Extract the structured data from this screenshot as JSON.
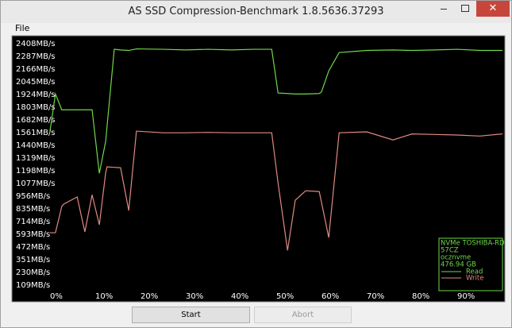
{
  "window": {
    "title": "AS SSD Compression-Benchmark 1.8.5636.37293",
    "menu": [
      "File"
    ],
    "buttons": [
      "Start",
      "Abort"
    ]
  },
  "chart_data": {
    "type": "line",
    "x": [
      0,
      1.2,
      2.6,
      3,
      6,
      7.7,
      9.3,
      10.9,
      12.3,
      12.6,
      14.2,
      15.6,
      17.4,
      19.1,
      25,
      30,
      35,
      40,
      45,
      49,
      50.4,
      52.5,
      54.2,
      56.5,
      59.5,
      60,
      61.6,
      63.9,
      70,
      75.8,
      80,
      85,
      90,
      95,
      100
    ],
    "series": [
      {
        "name": "Read",
        "color": "#6fd84a",
        "values": [
          1577,
          1931,
          1780,
          1780,
          1780,
          1780,
          1780,
          1175,
          1478,
          1620,
          2356,
          2350,
          2345,
          2360,
          2356,
          2350,
          2356,
          2350,
          2356,
          2356,
          1940,
          1935,
          1930,
          1930,
          1935,
          1950,
          2150,
          2325,
          2345,
          2350,
          2345,
          2350,
          2356,
          2345,
          2345
        ]
      },
      {
        "name": "Write",
        "color": "#e08a80",
        "values": [
          609,
          609,
          860,
          881,
          950,
          617,
          971,
          685,
          1180,
          1236,
          1232,
          1228,
          820,
          1577,
          1561,
          1561,
          1565,
          1561,
          1561,
          1561,
          1084,
          441,
          918,
          1009,
          1001,
          900,
          563,
          1561,
          1570,
          1493,
          1550,
          1545,
          1540,
          1530,
          1550
        ]
      }
    ],
    "xlim": [
      0,
      100
    ],
    "xticks": [
      {
        "value": 0,
        "label": "0%"
      },
      {
        "value": 10,
        "label": "10%"
      },
      {
        "value": 20,
        "label": "20%"
      },
      {
        "value": 30,
        "label": "30%"
      },
      {
        "value": 40,
        "label": "40%"
      },
      {
        "value": 50,
        "label": "50%"
      },
      {
        "value": 60,
        "label": "60%"
      },
      {
        "value": 70,
        "label": "70%"
      },
      {
        "value": 80,
        "label": "80%"
      },
      {
        "value": 90,
        "label": "90%"
      }
    ],
    "ylim": [
      0,
      2470
    ],
    "yticks": [
      {
        "value": 2408,
        "label": "2408MB/s"
      },
      {
        "value": 2287,
        "label": "2287MB/s"
      },
      {
        "value": 2166,
        "label": "2166MB/s"
      },
      {
        "value": 2045,
        "label": "2045MB/s"
      },
      {
        "value": 1924,
        "label": "1924MB/s"
      },
      {
        "value": 1803,
        "label": "1803MB/s"
      },
      {
        "value": 1682,
        "label": "1682MB/s"
      },
      {
        "value": 1561,
        "label": "1561MB/s"
      },
      {
        "value": 1440,
        "label": "1440MB/s"
      },
      {
        "value": 1319,
        "label": "1319MB/s"
      },
      {
        "value": 1198,
        "label": "1198MB/s"
      },
      {
        "value": 1077,
        "label": "1077MB/s"
      },
      {
        "value": 956,
        "label": "956MB/s"
      },
      {
        "value": 835,
        "label": "835MB/s"
      },
      {
        "value": 714,
        "label": "714MB/s"
      },
      {
        "value": 593,
        "label": "593MB/s"
      },
      {
        "value": 472,
        "label": "472MB/s"
      },
      {
        "value": 351,
        "label": "351MB/s"
      },
      {
        "value": 230,
        "label": "230MB/s"
      },
      {
        "value": 109,
        "label": "109MB/s"
      }
    ],
    "grid": false,
    "legend": "bottom-right",
    "device_info": [
      "NVMe TOSHIBA-RD",
      "57CZ",
      "ocznvme",
      "476.94 GB"
    ]
  }
}
